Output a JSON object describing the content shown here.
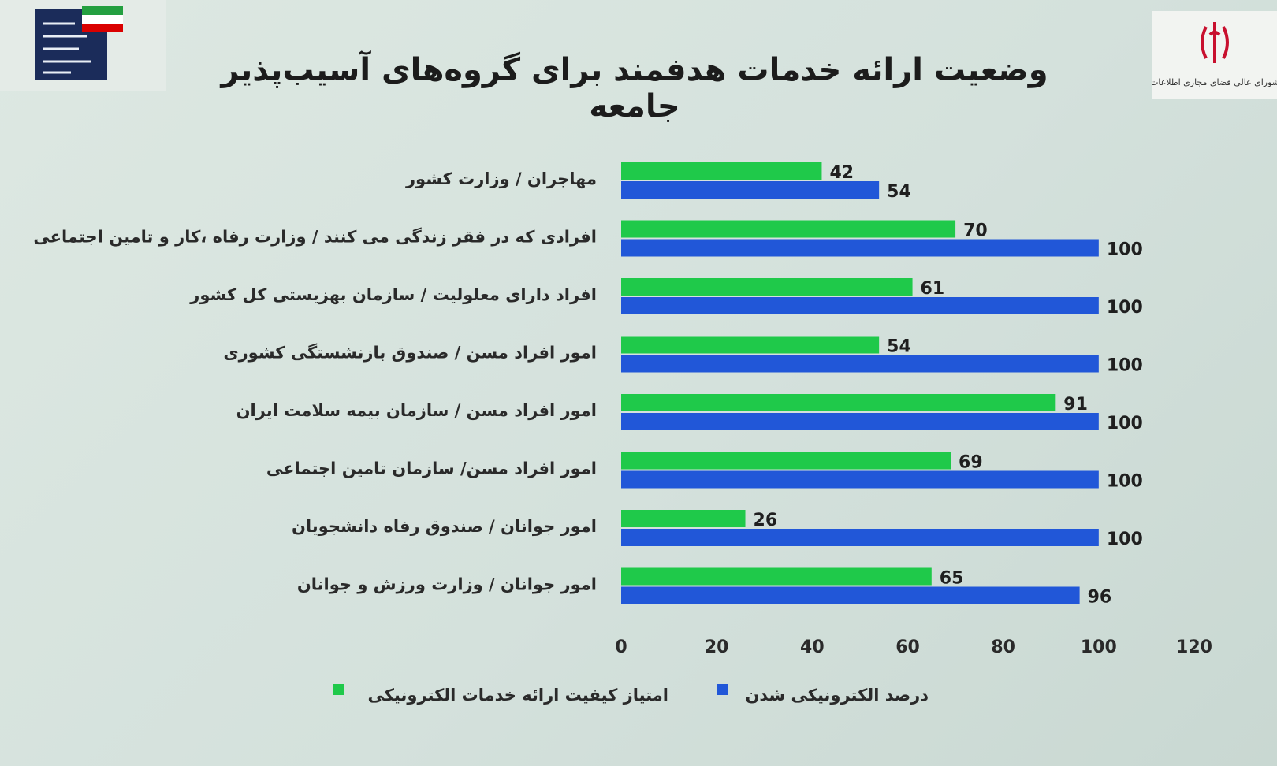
{
  "title": "وضعیت ارائه خدمات هدفمند برای گروه‌های آسیب‌پذیر جامعه",
  "logo_right_text": "شورای عالی فضای مجازی اطلاعات",
  "colors": {
    "green": "#1fc94a",
    "blue": "#2157d8",
    "flag_green": "#239f40",
    "flag_red": "#da0000",
    "navy": "#1b2c5a",
    "emblem": "#c8102e"
  },
  "chart_data": {
    "type": "bar",
    "orientation": "horizontal",
    "title": "وضعیت ارائه خدمات هدفمند برای گروه‌های آسیب‌پذیر جامعه",
    "categories": [
      "مهاجران / وزارت کشور",
      "افرادی که در فقر زندگی می کنند / وزارت رفاه ،کار و تامین اجتماعی",
      "افراد دارای معلولیت / سازمان بهزیستی کل کشور",
      "امور افراد مسن / صندوق بازنشستگی کشوری",
      "امور افراد مسن / سازمان بیمه سلامت ایران",
      "امور افراد مسن/ سازمان تامین اجتماعی",
      "امور جوانان / صندوق رفاه دانشجویان",
      "امور جوانان / وزارت ورزش و جوانان"
    ],
    "series": [
      {
        "name": "امتیاز کیفیت ارائه خدمات الکترونیکی",
        "color": "#1fc94a",
        "values": [
          42,
          70,
          61,
          54,
          91,
          69,
          26,
          65
        ]
      },
      {
        "name": "درصد الکترونیکی شدن",
        "color": "#2157d8",
        "values": [
          54,
          100,
          100,
          100,
          100,
          100,
          100,
          96
        ]
      }
    ],
    "xlim": [
      0,
      120
    ],
    "xticks": [
      0,
      20,
      40,
      60,
      80,
      100,
      120
    ],
    "grid": false,
    "legend_position": "bottom"
  }
}
